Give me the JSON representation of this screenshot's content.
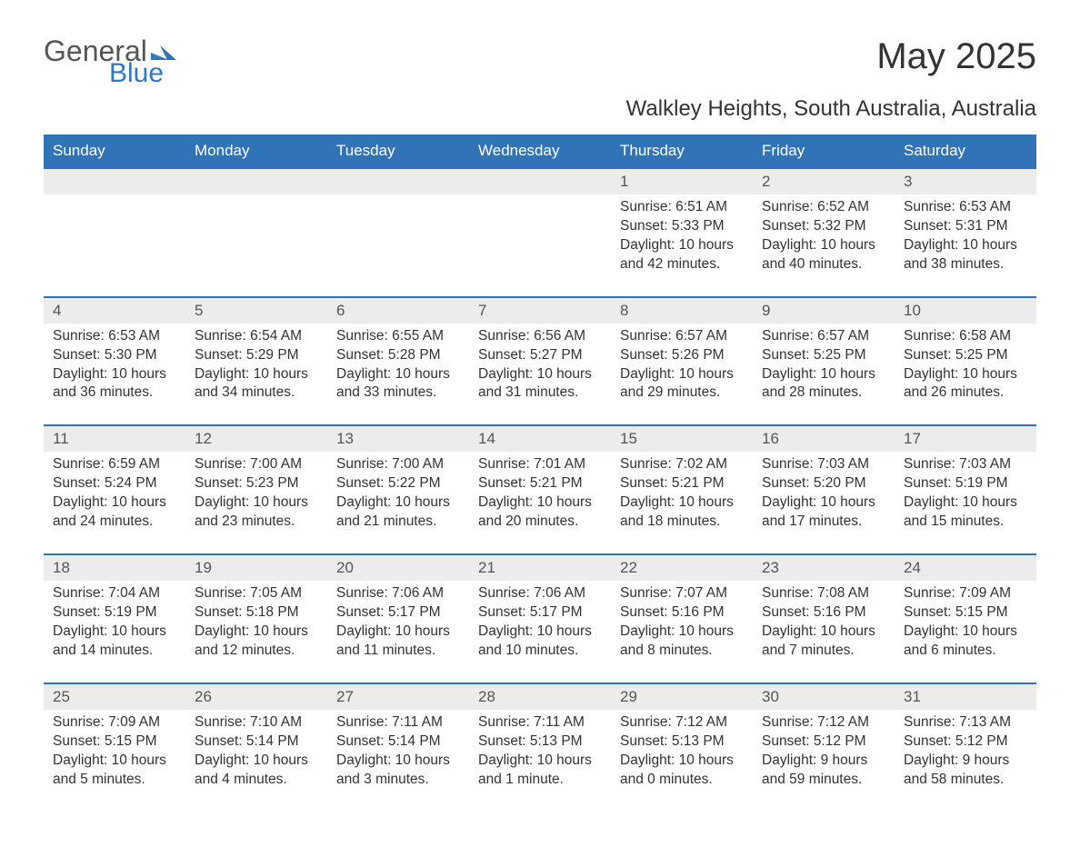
{
  "logo": {
    "text1": "General",
    "text2": "Blue"
  },
  "title": "May 2025",
  "location": "Walkley Heights, South Australia, Australia",
  "colors": {
    "header_bg": "#3173b7",
    "header_text": "#ffffff",
    "daynum_bg": "#ececec",
    "week_border": "#3173b7",
    "page_bg": "#ffffff",
    "text": "#333333",
    "logo_blue": "#2f79c2",
    "logo_gray": "#555555"
  },
  "typography": {
    "title_fontsize": 40,
    "location_fontsize": 24,
    "header_fontsize": 17,
    "daynum_fontsize": 17,
    "cell_fontsize": 15.5,
    "font_family": "Arial"
  },
  "layout": {
    "columns": 7,
    "rows": 5,
    "week_border_width": 2
  },
  "weekdays": [
    "Sunday",
    "Monday",
    "Tuesday",
    "Wednesday",
    "Thursday",
    "Friday",
    "Saturday"
  ],
  "weeks": [
    {
      "days": [
        {
          "num": "",
          "sunrise": "",
          "sunset": "",
          "daylight": ""
        },
        {
          "num": "",
          "sunrise": "",
          "sunset": "",
          "daylight": ""
        },
        {
          "num": "",
          "sunrise": "",
          "sunset": "",
          "daylight": ""
        },
        {
          "num": "",
          "sunrise": "",
          "sunset": "",
          "daylight": ""
        },
        {
          "num": "1",
          "sunrise": "Sunrise: 6:51 AM",
          "sunset": "Sunset: 5:33 PM",
          "daylight": "Daylight: 10 hours and 42 minutes."
        },
        {
          "num": "2",
          "sunrise": "Sunrise: 6:52 AM",
          "sunset": "Sunset: 5:32 PM",
          "daylight": "Daylight: 10 hours and 40 minutes."
        },
        {
          "num": "3",
          "sunrise": "Sunrise: 6:53 AM",
          "sunset": "Sunset: 5:31 PM",
          "daylight": "Daylight: 10 hours and 38 minutes."
        }
      ]
    },
    {
      "days": [
        {
          "num": "4",
          "sunrise": "Sunrise: 6:53 AM",
          "sunset": "Sunset: 5:30 PM",
          "daylight": "Daylight: 10 hours and 36 minutes."
        },
        {
          "num": "5",
          "sunrise": "Sunrise: 6:54 AM",
          "sunset": "Sunset: 5:29 PM",
          "daylight": "Daylight: 10 hours and 34 minutes."
        },
        {
          "num": "6",
          "sunrise": "Sunrise: 6:55 AM",
          "sunset": "Sunset: 5:28 PM",
          "daylight": "Daylight: 10 hours and 33 minutes."
        },
        {
          "num": "7",
          "sunrise": "Sunrise: 6:56 AM",
          "sunset": "Sunset: 5:27 PM",
          "daylight": "Daylight: 10 hours and 31 minutes."
        },
        {
          "num": "8",
          "sunrise": "Sunrise: 6:57 AM",
          "sunset": "Sunset: 5:26 PM",
          "daylight": "Daylight: 10 hours and 29 minutes."
        },
        {
          "num": "9",
          "sunrise": "Sunrise: 6:57 AM",
          "sunset": "Sunset: 5:25 PM",
          "daylight": "Daylight: 10 hours and 28 minutes."
        },
        {
          "num": "10",
          "sunrise": "Sunrise: 6:58 AM",
          "sunset": "Sunset: 5:25 PM",
          "daylight": "Daylight: 10 hours and 26 minutes."
        }
      ]
    },
    {
      "days": [
        {
          "num": "11",
          "sunrise": "Sunrise: 6:59 AM",
          "sunset": "Sunset: 5:24 PM",
          "daylight": "Daylight: 10 hours and 24 minutes."
        },
        {
          "num": "12",
          "sunrise": "Sunrise: 7:00 AM",
          "sunset": "Sunset: 5:23 PM",
          "daylight": "Daylight: 10 hours and 23 minutes."
        },
        {
          "num": "13",
          "sunrise": "Sunrise: 7:00 AM",
          "sunset": "Sunset: 5:22 PM",
          "daylight": "Daylight: 10 hours and 21 minutes."
        },
        {
          "num": "14",
          "sunrise": "Sunrise: 7:01 AM",
          "sunset": "Sunset: 5:21 PM",
          "daylight": "Daylight: 10 hours and 20 minutes."
        },
        {
          "num": "15",
          "sunrise": "Sunrise: 7:02 AM",
          "sunset": "Sunset: 5:21 PM",
          "daylight": "Daylight: 10 hours and 18 minutes."
        },
        {
          "num": "16",
          "sunrise": "Sunrise: 7:03 AM",
          "sunset": "Sunset: 5:20 PM",
          "daylight": "Daylight: 10 hours and 17 minutes."
        },
        {
          "num": "17",
          "sunrise": "Sunrise: 7:03 AM",
          "sunset": "Sunset: 5:19 PM",
          "daylight": "Daylight: 10 hours and 15 minutes."
        }
      ]
    },
    {
      "days": [
        {
          "num": "18",
          "sunrise": "Sunrise: 7:04 AM",
          "sunset": "Sunset: 5:19 PM",
          "daylight": "Daylight: 10 hours and 14 minutes."
        },
        {
          "num": "19",
          "sunrise": "Sunrise: 7:05 AM",
          "sunset": "Sunset: 5:18 PM",
          "daylight": "Daylight: 10 hours and 12 minutes."
        },
        {
          "num": "20",
          "sunrise": "Sunrise: 7:06 AM",
          "sunset": "Sunset: 5:17 PM",
          "daylight": "Daylight: 10 hours and 11 minutes."
        },
        {
          "num": "21",
          "sunrise": "Sunrise: 7:06 AM",
          "sunset": "Sunset: 5:17 PM",
          "daylight": "Daylight: 10 hours and 10 minutes."
        },
        {
          "num": "22",
          "sunrise": "Sunrise: 7:07 AM",
          "sunset": "Sunset: 5:16 PM",
          "daylight": "Daylight: 10 hours and 8 minutes."
        },
        {
          "num": "23",
          "sunrise": "Sunrise: 7:08 AM",
          "sunset": "Sunset: 5:16 PM",
          "daylight": "Daylight: 10 hours and 7 minutes."
        },
        {
          "num": "24",
          "sunrise": "Sunrise: 7:09 AM",
          "sunset": "Sunset: 5:15 PM",
          "daylight": "Daylight: 10 hours and 6 minutes."
        }
      ]
    },
    {
      "days": [
        {
          "num": "25",
          "sunrise": "Sunrise: 7:09 AM",
          "sunset": "Sunset: 5:15 PM",
          "daylight": "Daylight: 10 hours and 5 minutes."
        },
        {
          "num": "26",
          "sunrise": "Sunrise: 7:10 AM",
          "sunset": "Sunset: 5:14 PM",
          "daylight": "Daylight: 10 hours and 4 minutes."
        },
        {
          "num": "27",
          "sunrise": "Sunrise: 7:11 AM",
          "sunset": "Sunset: 5:14 PM",
          "daylight": "Daylight: 10 hours and 3 minutes."
        },
        {
          "num": "28",
          "sunrise": "Sunrise: 7:11 AM",
          "sunset": "Sunset: 5:13 PM",
          "daylight": "Daylight: 10 hours and 1 minute."
        },
        {
          "num": "29",
          "sunrise": "Sunrise: 7:12 AM",
          "sunset": "Sunset: 5:13 PM",
          "daylight": "Daylight: 10 hours and 0 minutes."
        },
        {
          "num": "30",
          "sunrise": "Sunrise: 7:12 AM",
          "sunset": "Sunset: 5:12 PM",
          "daylight": "Daylight: 9 hours and 59 minutes."
        },
        {
          "num": "31",
          "sunrise": "Sunrise: 7:13 AM",
          "sunset": "Sunset: 5:12 PM",
          "daylight": "Daylight: 9 hours and 58 minutes."
        }
      ]
    }
  ]
}
